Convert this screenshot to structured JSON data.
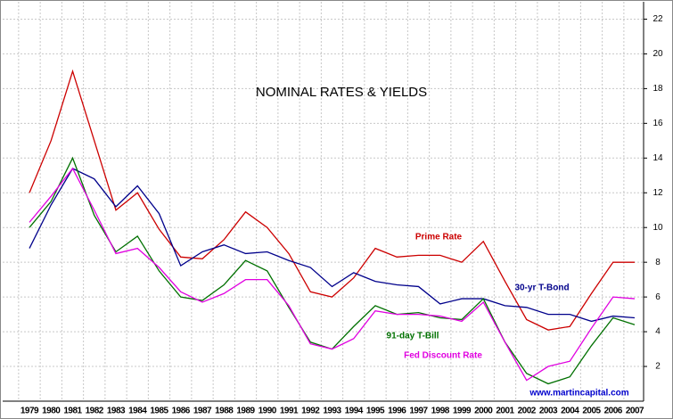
{
  "chart_data": {
    "type": "line",
    "title": "NOMINAL RATES & YIELDS",
    "annotations": [
      "www.martincapital.com"
    ],
    "categories": [
      "1979",
      "1980",
      "1981",
      "1982",
      "1983",
      "1984",
      "1985",
      "1986",
      "1987",
      "1988",
      "1989",
      "1990",
      "1991",
      "1992",
      "1993",
      "1994",
      "1995",
      "1996",
      "1997",
      "1998",
      "1999",
      "2000",
      "2001",
      "2002",
      "2003",
      "2004",
      "2005",
      "2006",
      "2007"
    ],
    "series": [
      {
        "name": "Prime Rate",
        "color": "#cc0000",
        "values": [
          12,
          15,
          19,
          15,
          11,
          12,
          9.9,
          8.3,
          8.2,
          9.3,
          10.9,
          10,
          8.5,
          6.3,
          6,
          7.1,
          8.8,
          8.3,
          8.4,
          8.4,
          8,
          9.2,
          6.9,
          4.7,
          4.1,
          4.3,
          6.2,
          8,
          8
        ]
      },
      {
        "name": "30-yr T-Bond",
        "color": "#00008b",
        "values": [
          8.8,
          11.3,
          13.4,
          12.8,
          11.2,
          12.4,
          10.8,
          7.8,
          8.6,
          9,
          8.5,
          8.6,
          8.1,
          7.7,
          6.6,
          7.4,
          6.9,
          6.7,
          6.6,
          5.6,
          5.9,
          5.9,
          5.5,
          5.4,
          5,
          5,
          4.6,
          4.9,
          4.8
        ]
      },
      {
        "name": "91-day T-Bill",
        "color": "#007000",
        "values": [
          10,
          11.5,
          14,
          10.7,
          8.6,
          9.5,
          7.5,
          6,
          5.8,
          6.7,
          8.1,
          7.5,
          5.4,
          3.4,
          3,
          4.3,
          5.5,
          5,
          5.1,
          4.8,
          4.7,
          5.9,
          3.4,
          1.6,
          1,
          1.4,
          3.2,
          4.8,
          4.4
        ]
      },
      {
        "name": "Fed Discount Rate",
        "color": "#e000e0",
        "values": [
          10.3,
          11.8,
          13.4,
          11,
          8.5,
          8.8,
          7.7,
          6.3,
          5.7,
          6.2,
          7,
          7,
          5.5,
          3.3,
          3,
          3.6,
          5.2,
          5,
          5,
          4.9,
          4.6,
          5.7,
          3.4,
          1.2,
          2,
          2.3,
          4.2,
          6,
          5.9
        ]
      }
    ],
    "ylim": [
      0,
      23
    ],
    "yticks": [
      2,
      4,
      6,
      8,
      10,
      12,
      14,
      16,
      18,
      20,
      22
    ],
    "grid": true
  }
}
